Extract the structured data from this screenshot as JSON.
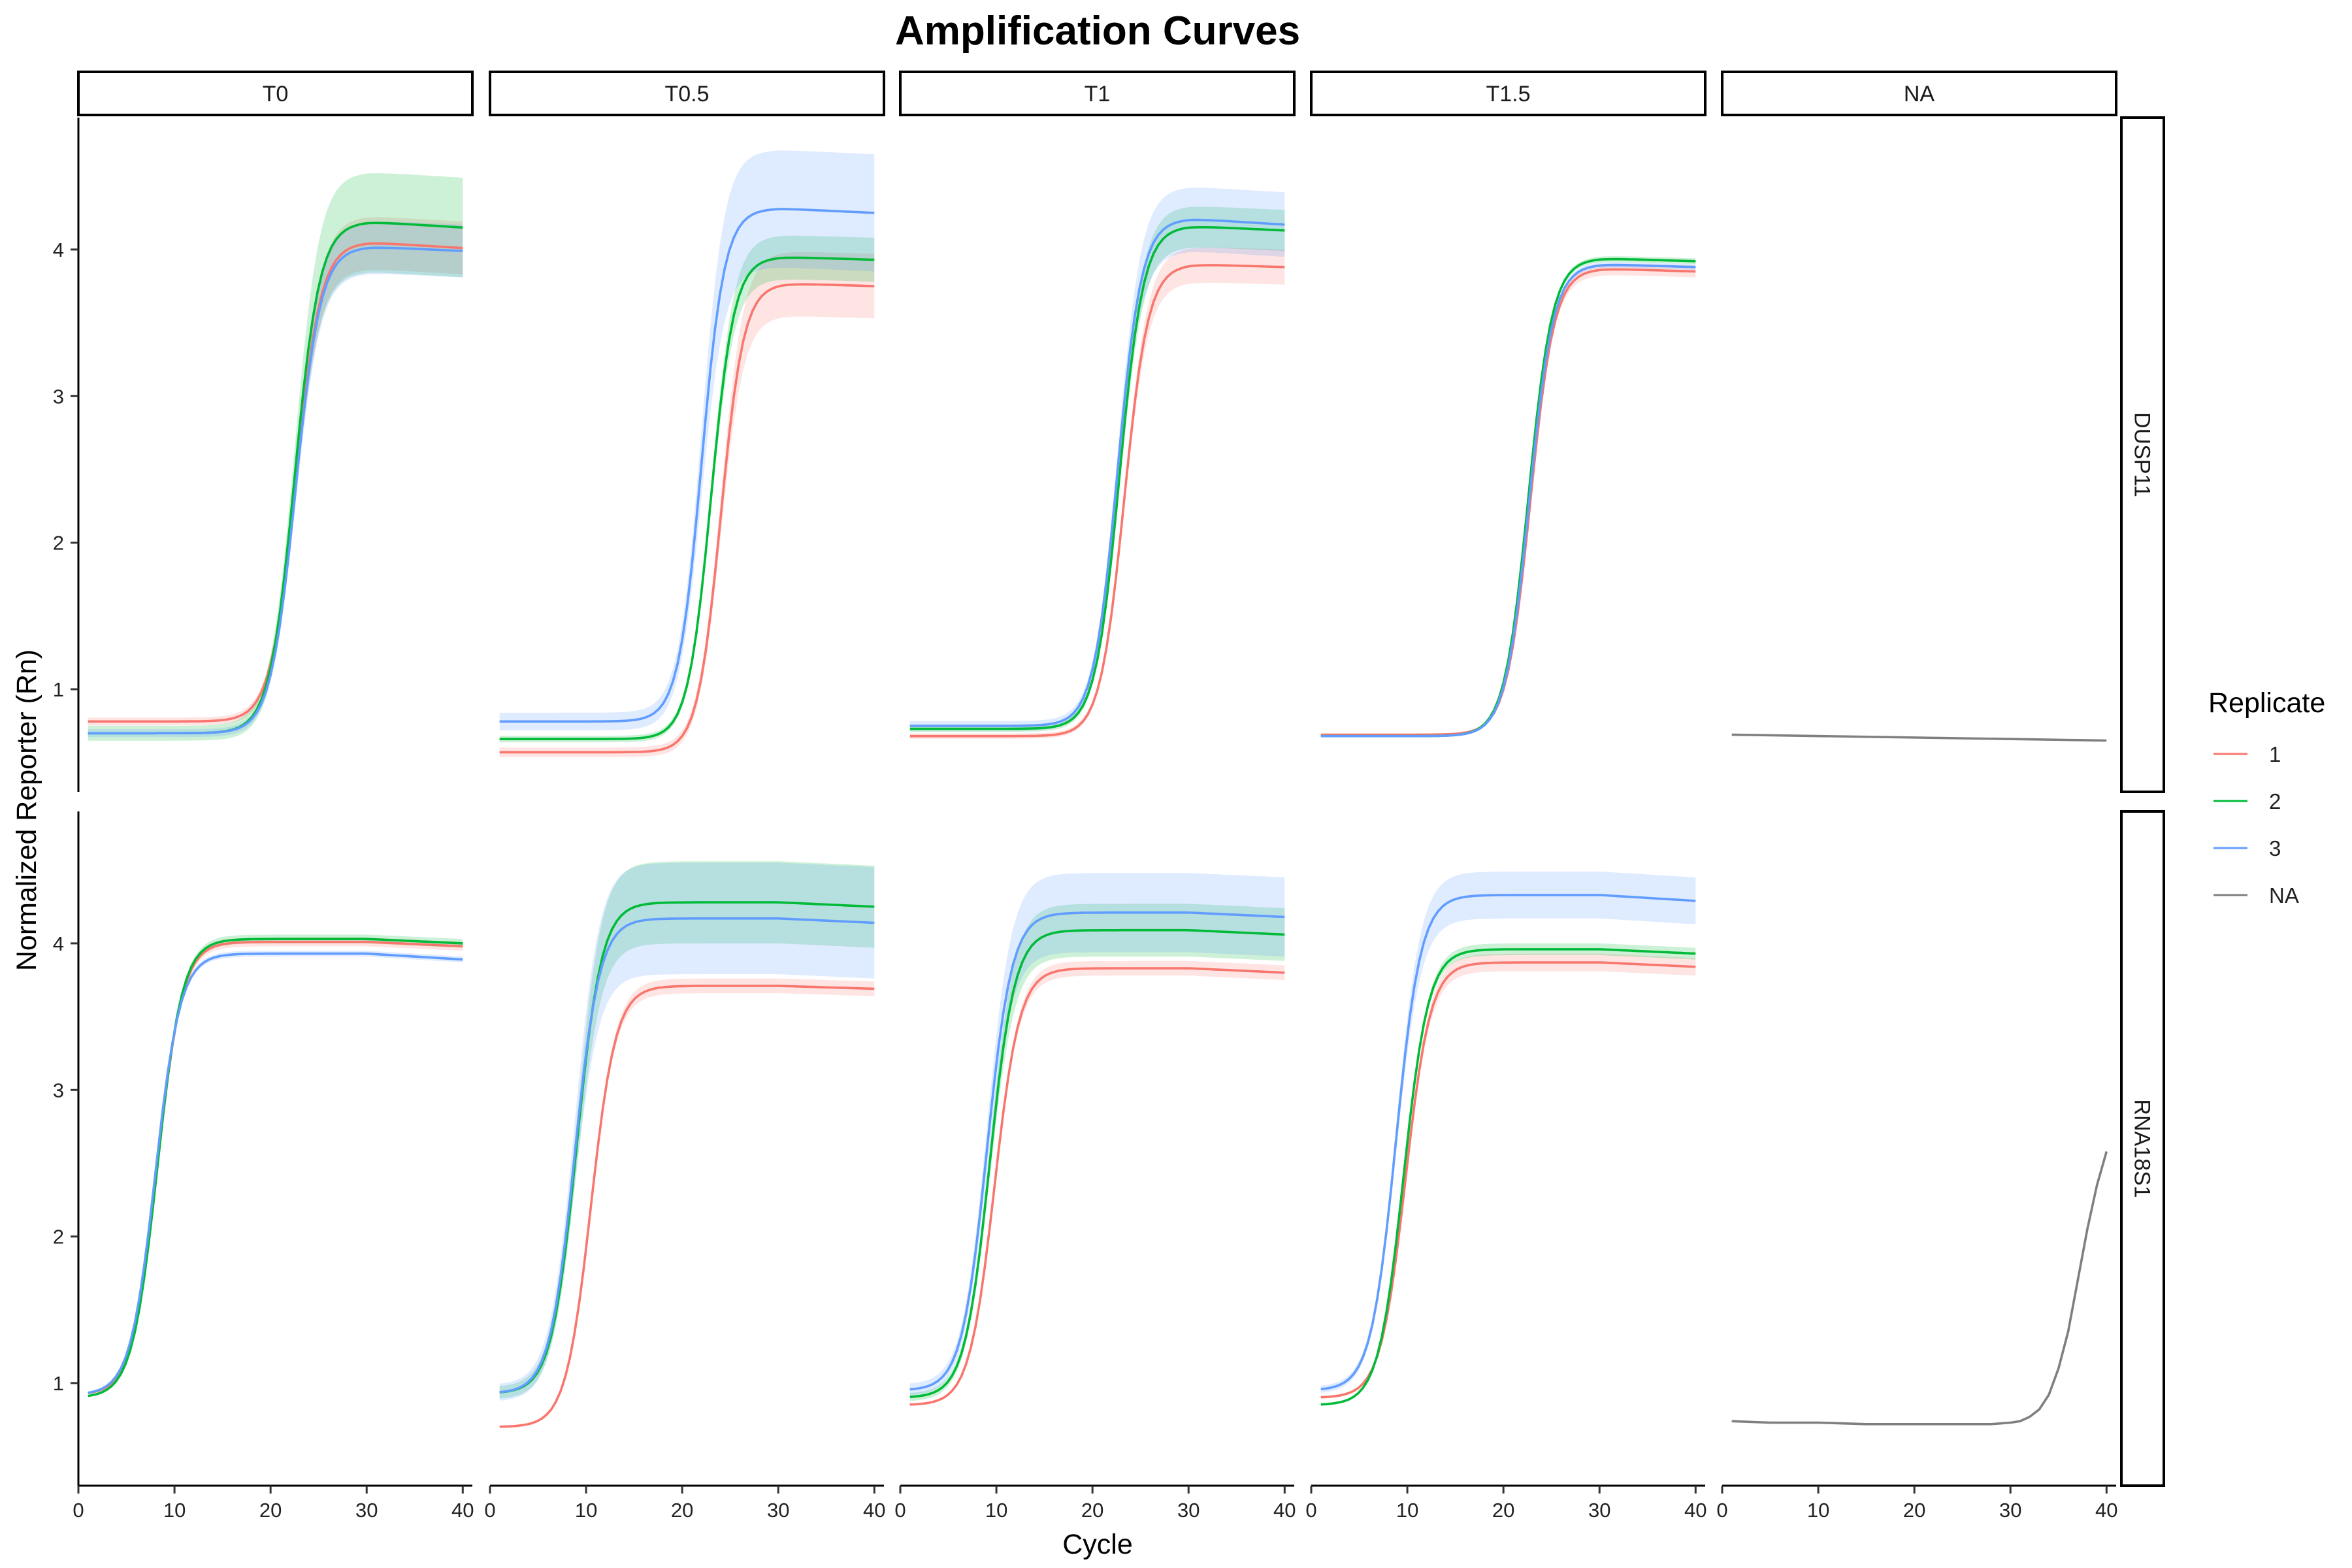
{
  "chart_data": {
    "type": "line",
    "title": "Amplification Curves",
    "xlabel": "Cycle",
    "ylabel": "Normalized Reporter (Rn)",
    "xlim": [
      0,
      41
    ],
    "x_ticks": [
      0,
      10,
      20,
      30,
      40
    ],
    "ylim": [
      0.3,
      4.9
    ],
    "y_ticks": [
      1,
      2,
      3,
      4
    ],
    "grid": false,
    "facet_cols": [
      "T0",
      "T0.5",
      "T1",
      "T1.5",
      "NA"
    ],
    "facet_rows": [
      "DUSP11",
      "RNA18S1"
    ],
    "legend": {
      "title": "Replicate",
      "position": "right",
      "items": [
        {
          "label": "1",
          "color": "#F8766D"
        },
        {
          "label": "2",
          "color": "#00BA38"
        },
        {
          "label": "3",
          "color": "#619CFF"
        },
        {
          "label": "NA",
          "color": "#7F7F7F"
        }
      ]
    },
    "curve_model": "logistic: y = base + (plateau - base) / (1 + exp(-(x - midpoint) / slope)) - drift * max(0, x - 30); ribbon = mean ± half_width * (0.15 + 0.85 * sigmoid)",
    "x_range": [
      1,
      40
    ],
    "panels": [
      {
        "row": "DUSP11",
        "col": "T0",
        "series": [
          {
            "replicate": "1",
            "base": 0.78,
            "plateau": 4.05,
            "midpoint": 22.6,
            "slope": 1.3,
            "drift": 0.004,
            "band": 0.18
          },
          {
            "replicate": "2",
            "base": 0.7,
            "plateau": 4.19,
            "midpoint": 22.5,
            "slope": 1.3,
            "drift": 0.004,
            "band": 0.34
          },
          {
            "replicate": "3",
            "base": 0.7,
            "plateau": 4.02,
            "midpoint": 22.6,
            "slope": 1.3,
            "drift": 0.003,
            "band": 0.18
          }
        ]
      },
      {
        "row": "DUSP11",
        "col": "T0.5",
        "series": [
          {
            "replicate": "1",
            "base": 0.57,
            "plateau": 3.77,
            "midpoint": 24.0,
            "slope": 1.2,
            "drift": 0.002,
            "band": 0.22
          },
          {
            "replicate": "2",
            "base": 0.66,
            "plateau": 3.95,
            "midpoint": 23.0,
            "slope": 1.2,
            "drift": 0.002,
            "band": 0.15
          },
          {
            "replicate": "3",
            "base": 0.78,
            "plateau": 4.28,
            "midpoint": 22.0,
            "slope": 1.2,
            "drift": 0.003,
            "band": 0.4
          }
        ]
      },
      {
        "row": "DUSP11",
        "col": "T1",
        "series": [
          {
            "replicate": "1",
            "base": 0.68,
            "plateau": 3.9,
            "midpoint": 23.3,
            "slope": 1.25,
            "drift": 0.002,
            "band": 0.12
          },
          {
            "replicate": "2",
            "base": 0.73,
            "plateau": 4.16,
            "midpoint": 22.8,
            "slope": 1.25,
            "drift": 0.003,
            "band": 0.14
          },
          {
            "replicate": "3",
            "base": 0.75,
            "plateau": 4.21,
            "midpoint": 22.6,
            "slope": 1.25,
            "drift": 0.004,
            "band": 0.22
          }
        ]
      },
      {
        "row": "DUSP11",
        "col": "T1.5",
        "series": [
          {
            "replicate": "1",
            "base": 0.69,
            "plateau": 3.87,
            "midpoint": 22.8,
            "slope": 1.25,
            "drift": 0.002,
            "band": 0.04
          },
          {
            "replicate": "2",
            "base": 0.68,
            "plateau": 3.94,
            "midpoint": 22.6,
            "slope": 1.25,
            "drift": 0.002,
            "band": 0.02
          },
          {
            "replicate": "3",
            "base": 0.68,
            "plateau": 3.9,
            "midpoint": 22.7,
            "slope": 1.25,
            "drift": 0.002,
            "band": 0.02
          }
        ]
      },
      {
        "row": "DUSP11",
        "col": "NA",
        "series": [
          {
            "replicate": "NA",
            "linear": [
              0.69,
              0.65
            ]
          }
        ]
      },
      {
        "row": "RNA18S1",
        "col": "T0",
        "series": [
          {
            "replicate": "1",
            "base": 0.92,
            "plateau": 4.01,
            "midpoint": 8.2,
            "slope": 1.3,
            "drift": 0.003,
            "band": 0.03
          },
          {
            "replicate": "2",
            "base": 0.9,
            "plateau": 4.03,
            "midpoint": 8.2,
            "slope": 1.3,
            "drift": 0.003,
            "band": 0.03
          },
          {
            "replicate": "3",
            "base": 0.92,
            "plateau": 3.93,
            "midpoint": 8.0,
            "slope": 1.3,
            "drift": 0.004,
            "band": 0.02
          }
        ]
      },
      {
        "row": "RNA18S1",
        "col": "T0.5",
        "series": [
          {
            "replicate": "1",
            "base": 0.7,
            "plateau": 3.71,
            "midpoint": 10.5,
            "slope": 1.3,
            "drift": 0.002,
            "band": 0.05
          },
          {
            "replicate": "2",
            "base": 0.93,
            "plateau": 4.28,
            "midpoint": 9.0,
            "slope": 1.3,
            "drift": 0.003,
            "band": 0.28
          },
          {
            "replicate": "3",
            "base": 0.93,
            "plateau": 4.17,
            "midpoint": 8.8,
            "slope": 1.3,
            "drift": 0.003,
            "band": 0.38
          }
        ]
      },
      {
        "row": "RNA18S1",
        "col": "T1",
        "series": [
          {
            "replicate": "1",
            "base": 0.85,
            "plateau": 3.83,
            "midpoint": 9.8,
            "slope": 1.3,
            "drift": 0.003,
            "band": 0.05
          },
          {
            "replicate": "2",
            "base": 0.9,
            "plateau": 4.09,
            "midpoint": 9.3,
            "slope": 1.3,
            "drift": 0.003,
            "band": 0.18
          },
          {
            "replicate": "3",
            "base": 0.95,
            "plateau": 4.21,
            "midpoint": 9.0,
            "slope": 1.3,
            "drift": 0.003,
            "band": 0.27
          }
        ]
      },
      {
        "row": "RNA18S1",
        "col": "T1.5",
        "series": [
          {
            "replicate": "1",
            "base": 0.9,
            "plateau": 3.87,
            "midpoint": 9.8,
            "slope": 1.3,
            "drift": 0.003,
            "band": 0.06
          },
          {
            "replicate": "2",
            "base": 0.85,
            "plateau": 3.96,
            "midpoint": 9.6,
            "slope": 1.3,
            "drift": 0.003,
            "band": 0.04
          },
          {
            "replicate": "3",
            "base": 0.95,
            "plateau": 4.33,
            "midpoint": 8.8,
            "slope": 1.3,
            "drift": 0.004,
            "band": 0.16
          }
        ]
      },
      {
        "row": "RNA18S1",
        "col": "NA",
        "series": [
          {
            "replicate": "NA",
            "points": [
              [
                1,
                0.74
              ],
              [
                5,
                0.73
              ],
              [
                10,
                0.73
              ],
              [
                15,
                0.72
              ],
              [
                20,
                0.72
              ],
              [
                25,
                0.72
              ],
              [
                28,
                0.72
              ],
              [
                30,
                0.73
              ],
              [
                31,
                0.74
              ],
              [
                32,
                0.77
              ],
              [
                33,
                0.82
              ],
              [
                34,
                0.92
              ],
              [
                35,
                1.1
              ],
              [
                36,
                1.35
              ],
              [
                37,
                1.7
              ],
              [
                38,
                2.05
              ],
              [
                39,
                2.35
              ],
              [
                40,
                2.58
              ]
            ]
          }
        ]
      }
    ]
  }
}
